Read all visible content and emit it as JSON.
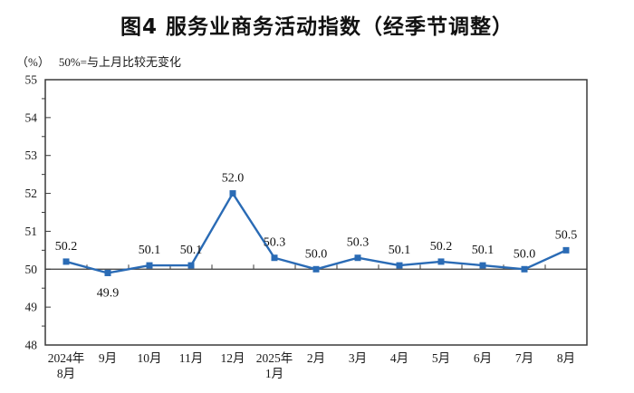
{
  "chart_data": {
    "type": "line",
    "title": "图4 服务业商务活动指数（经季节调整）",
    "unit_label": "（%）",
    "note": "50%=与上月比较无变化",
    "categories": [
      "2024年\n8月",
      "9月",
      "10月",
      "11月",
      "12月",
      "2025年\n1月",
      "2月",
      "3月",
      "4月",
      "5月",
      "6月",
      "7月",
      "8月"
    ],
    "values": [
      50.2,
      49.9,
      50.1,
      50.1,
      52.0,
      50.3,
      50.0,
      50.3,
      50.1,
      50.2,
      50.1,
      50.0,
      50.5
    ],
    "data_labels": [
      "50.2",
      "49.9",
      "50.1",
      "50.1",
      "52.0",
      "50.3",
      "50.0",
      "50.3",
      "50.1",
      "50.2",
      "50.1",
      "50.0",
      "50.5"
    ],
    "label_positions": [
      "above",
      "below",
      "above",
      "above",
      "above",
      "above",
      "above",
      "above",
      "above",
      "above",
      "above",
      "above",
      "above"
    ],
    "ylim": [
      48,
      55
    ],
    "y_ticks": [
      48,
      49,
      50,
      51,
      52,
      53,
      54,
      55
    ],
    "y_minor_step": 0.5,
    "baseline": 50,
    "grid": false,
    "legend": false,
    "line_color": "#2a6bb5",
    "axis_color": "#3a3a3a",
    "text_color": "#111111"
  }
}
